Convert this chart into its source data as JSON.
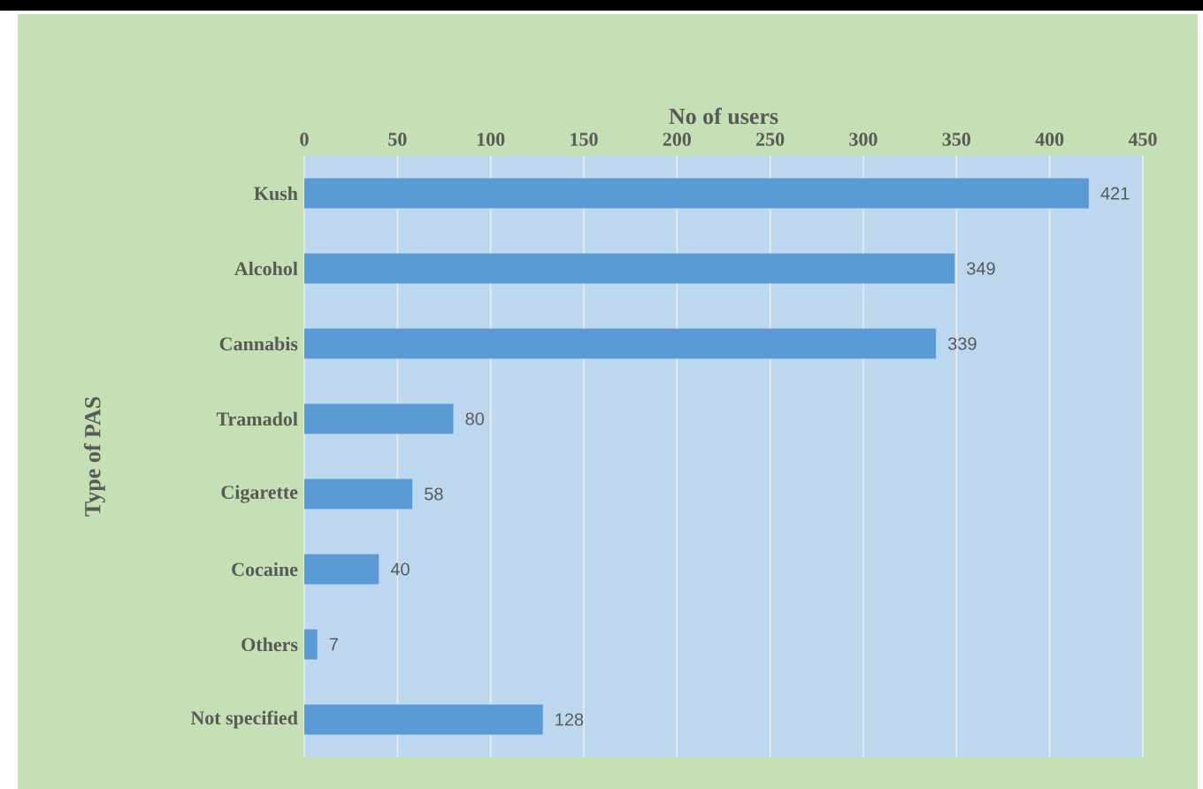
{
  "chart_data": {
    "type": "bar",
    "orientation": "horizontal",
    "xlabel": "No of users",
    "ylabel": "Type of PAS",
    "categories": [
      "Kush",
      "Alcohol",
      "Cannabis",
      "Tramadol",
      "Cigarette",
      "Cocaine",
      "Others",
      "Not specified"
    ],
    "values": [
      421,
      349,
      339,
      80,
      58,
      40,
      7,
      128
    ],
    "color": "#5b9bd5",
    "xlim": [
      0,
      450
    ],
    "xticks": [
      0,
      50,
      100,
      150,
      200,
      250,
      300,
      350,
      400,
      450
    ],
    "grid": "x",
    "data_labels": true
  }
}
